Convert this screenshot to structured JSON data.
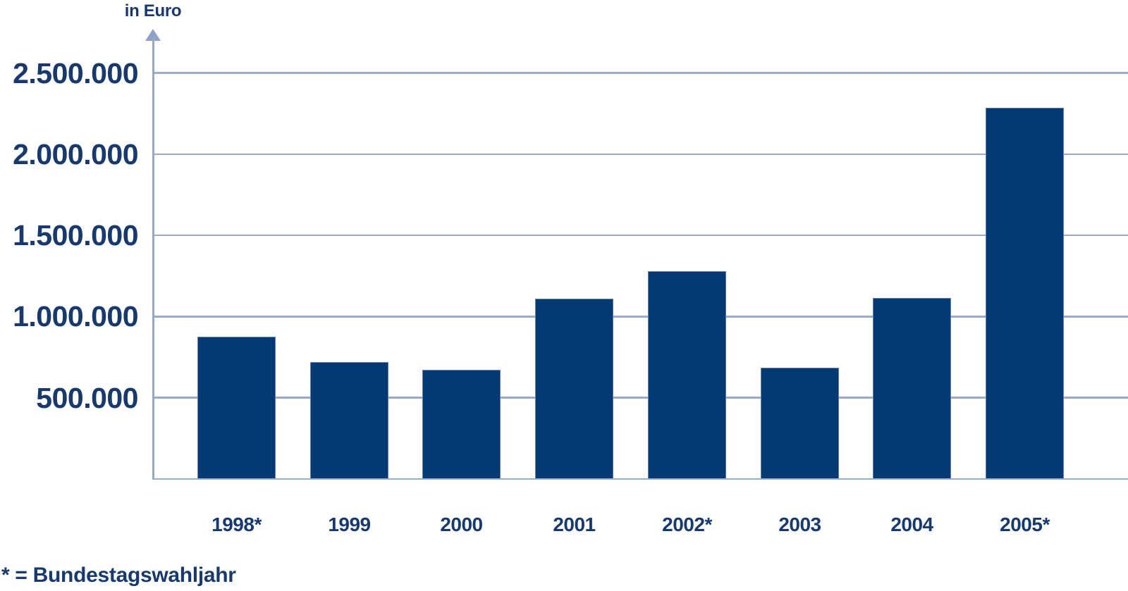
{
  "chart_data": {
    "type": "bar",
    "title": "in Euro",
    "footnote": "* = Bundestagswahljahr",
    "categories": [
      "1998*",
      "1999",
      "2000",
      "2001",
      "2002*",
      "2003",
      "2004",
      "2005*"
    ],
    "values": [
      875000,
      720000,
      670000,
      1110000,
      1280000,
      685000,
      1115000,
      2285000
    ],
    "yticks": [
      {
        "value": 2500000,
        "label": "2.500.000"
      },
      {
        "value": 2000000,
        "label": "2.000.000"
      },
      {
        "value": 1500000,
        "label": "1.500.000"
      },
      {
        "value": 1000000,
        "label": "1.000.000"
      },
      {
        "value": 500000,
        "label": "500.000"
      }
    ],
    "ylim": [
      0,
      2720000
    ],
    "grid": true,
    "legend": false,
    "colors": {
      "bar": "#043A73",
      "text": "#17396E",
      "grid": "#9AAAC9",
      "arrow": "#8FA2C6",
      "background": "#FFFFFF"
    }
  }
}
